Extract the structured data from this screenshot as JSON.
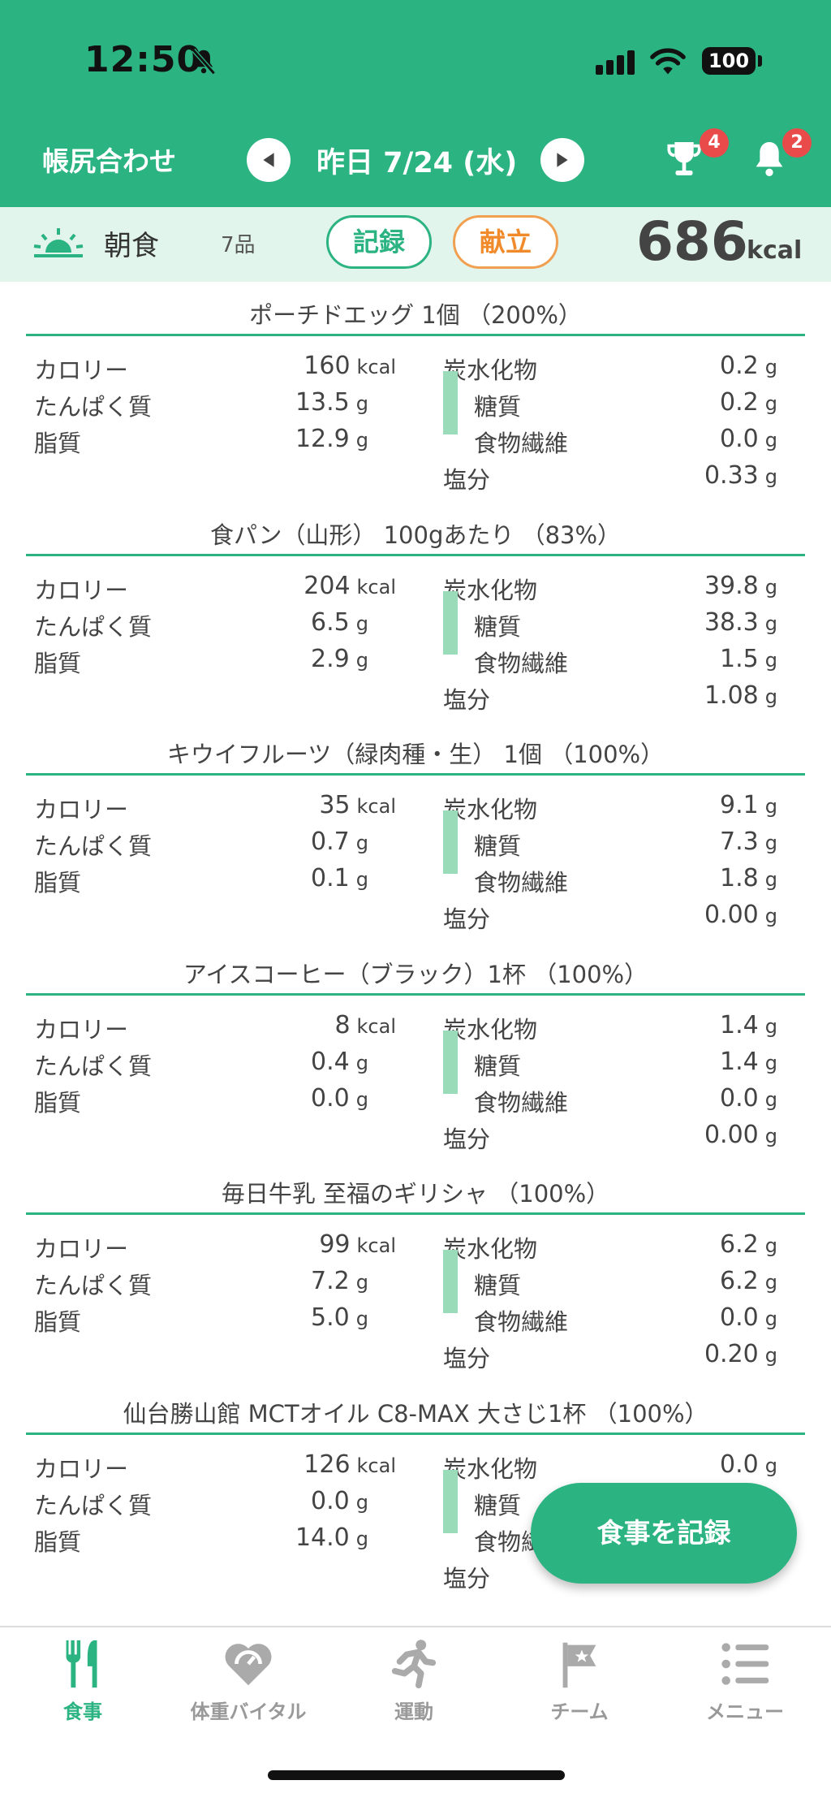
{
  "status_bar": {
    "time": "12:50",
    "battery": "100"
  },
  "nav": {
    "reconcile_label": "帳尻合わせ",
    "date_label": "昨日 7/24 (水)",
    "trophy_badge": "4",
    "bell_badge": "2"
  },
  "meal": {
    "name": "朝食",
    "count": "7品",
    "record_label": "記録",
    "menu_label": "献立",
    "total_kcal": "686",
    "total_unit": "kcal"
  },
  "labels": {
    "calorie": "カロリー",
    "protein": "たんぱく質",
    "fat": "脂質",
    "carb": "炭水化物",
    "sugar": "糖質",
    "fiber": "食物繊維",
    "salt": "塩分",
    "kcal": "kcal",
    "g": "g"
  },
  "foods": [
    {
      "title": "ポーチドエッグ 1個 （200%）",
      "calorie": "160",
      "protein": "13.5",
      "fat": "12.9",
      "carb": "0.2",
      "sugar": "0.2",
      "fiber": "0.0",
      "salt": "0.33"
    },
    {
      "title": "食パン（山形） 100gあたり （83%）",
      "calorie": "204",
      "protein": "6.5",
      "fat": "2.9",
      "carb": "39.8",
      "sugar": "38.3",
      "fiber": "1.5",
      "salt": "1.08"
    },
    {
      "title": "キウイフルーツ（緑肉種・生） 1個 （100%）",
      "calorie": "35",
      "protein": "0.7",
      "fat": "0.1",
      "carb": "9.1",
      "sugar": "7.3",
      "fiber": "1.8",
      "salt": "0.00"
    },
    {
      "title": "アイスコーヒー（ブラック）1杯 （100%）",
      "calorie": "8",
      "protein": "0.4",
      "fat": "0.0",
      "carb": "1.4",
      "sugar": "1.4",
      "fiber": "0.0",
      "salt": "0.00"
    },
    {
      "title": "毎日牛乳 至福のギリシャ （100%）",
      "calorie": "99",
      "protein": "7.2",
      "fat": "5.0",
      "carb": "6.2",
      "sugar": "6.2",
      "fiber": "0.0",
      "salt": "0.20"
    },
    {
      "title": "仙台勝山館 MCTオイル C8-MAX 大さじ1杯 （100%）",
      "calorie": "126",
      "protein": "0.0",
      "fat": "14.0",
      "carb": "0.0",
      "sugar": "",
      "fiber": "",
      "salt": ""
    }
  ],
  "fab_label": "食事を記録",
  "tabs": [
    {
      "label": "食事",
      "icon": "fork-knife-icon"
    },
    {
      "label": "体重バイタル",
      "icon": "heart-scale-icon"
    },
    {
      "label": "運動",
      "icon": "runner-icon"
    },
    {
      "label": "チーム",
      "icon": "flag-icon"
    },
    {
      "label": "メニュー",
      "icon": "menu-list-icon"
    }
  ],
  "colors": {
    "accent": "#2bb381",
    "orange": "#f08a2a",
    "badge": "#e94a4a"
  }
}
